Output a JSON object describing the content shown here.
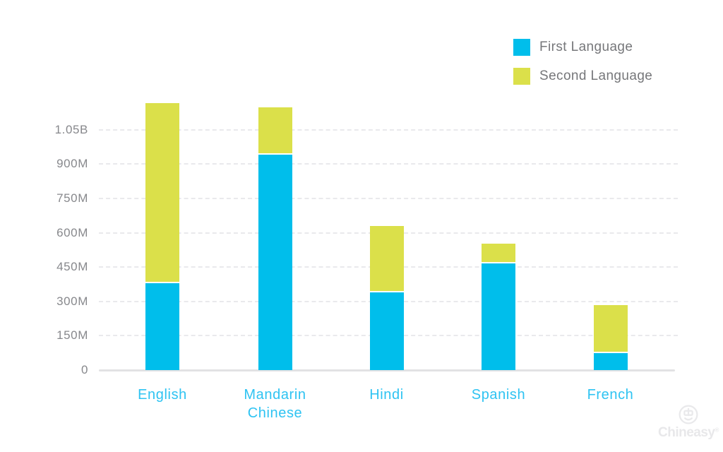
{
  "legend": {
    "items": [
      {
        "label": "First Language",
        "color": "#00beeb"
      },
      {
        "label": "Second Language",
        "color": "#dbe04a"
      }
    ]
  },
  "chart_data": {
    "type": "bar",
    "stacked": true,
    "categories": [
      "English",
      "Mandarin Chinese",
      "Hindi",
      "Spanish",
      "French"
    ],
    "series": [
      {
        "name": "First Language",
        "color": "#00beeb",
        "values": [
          380,
          940,
          340,
          465,
          75
        ]
      },
      {
        "name": "Second Language",
        "color": "#dbe04a",
        "values": [
          780,
          200,
          285,
          80,
          205
        ]
      }
    ],
    "unit": "millions of speakers",
    "yticks": [
      {
        "label": "1.05B",
        "value": 1050
      },
      {
        "label": "900M",
        "value": 900
      },
      {
        "label": "750M",
        "value": 750
      },
      {
        "label": "600M",
        "value": 600
      },
      {
        "label": "450M",
        "value": 450
      },
      {
        "label": "300M",
        "value": 300
      },
      {
        "label": "150M",
        "value": 150
      },
      {
        "label": "0",
        "value": 0
      }
    ],
    "ylim": [
      0,
      1200
    ],
    "grid": "horizontal-dashed",
    "legend_position": "top-right",
    "axis_label_color": "#87888c",
    "category_label_color": "#2ec3f2"
  },
  "branding": {
    "logo_text": "Chineasy",
    "registered_mark": "®"
  }
}
